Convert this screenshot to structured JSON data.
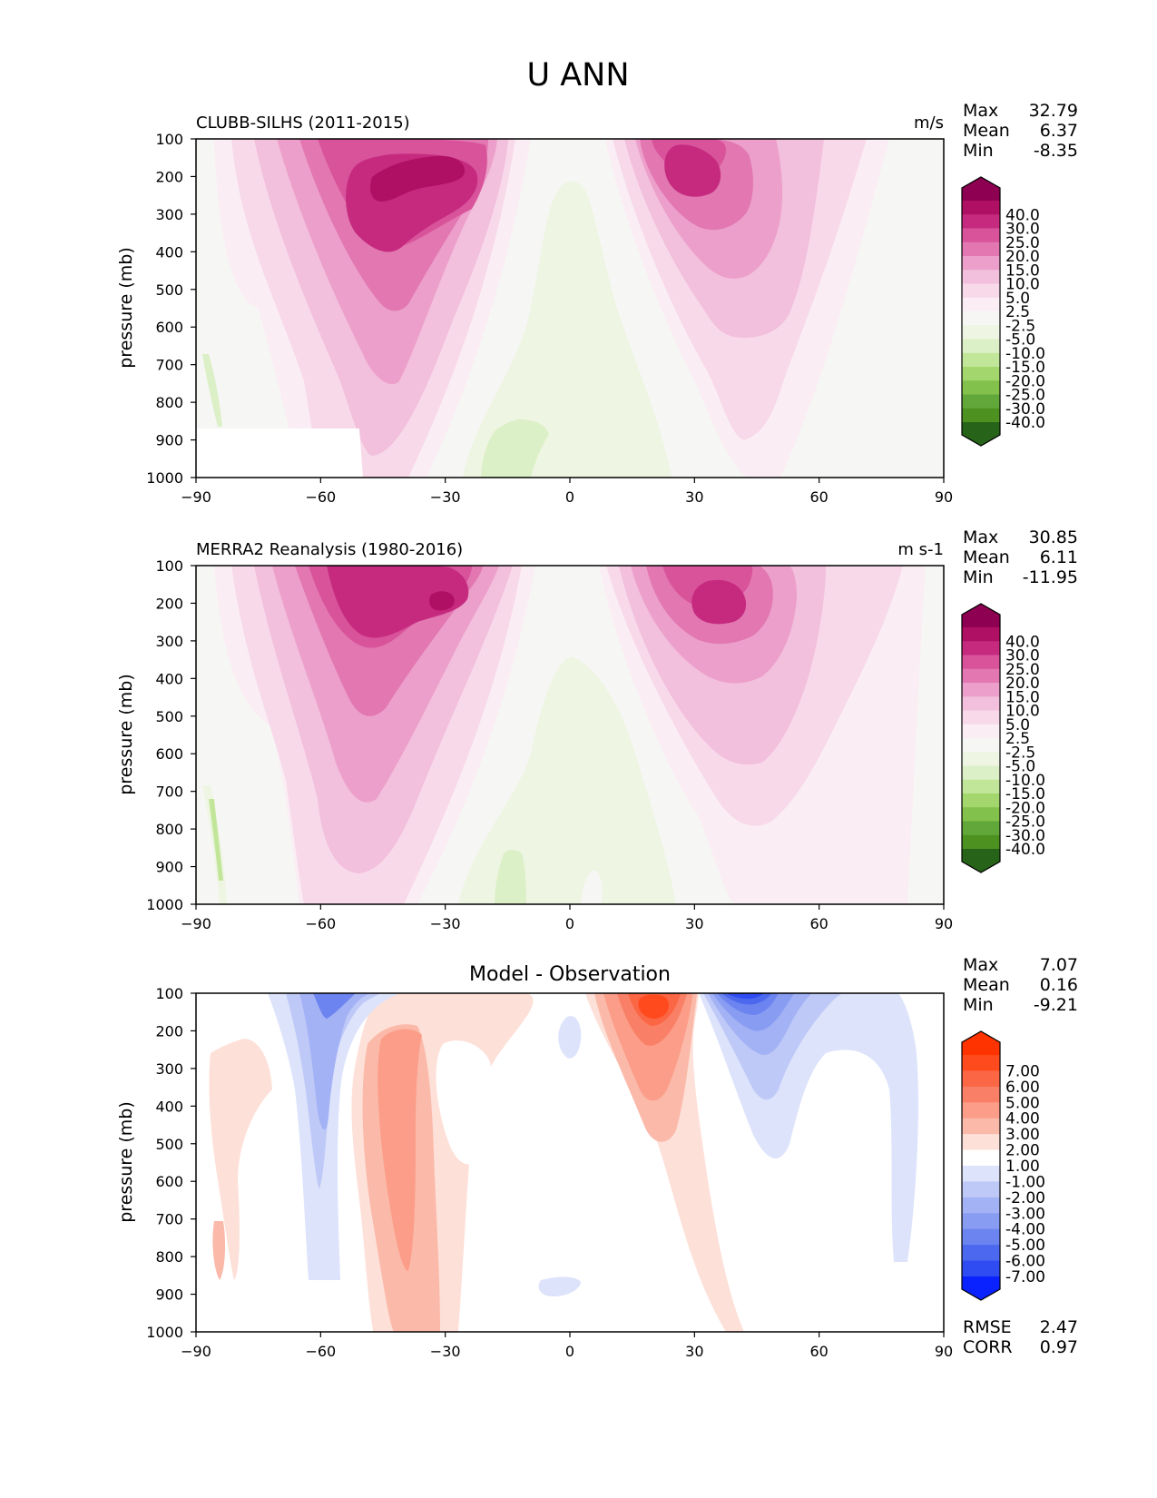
{
  "page_title": "U ANN",
  "panels": [
    {
      "title_left": "CLUBB-SILHS (2011-2015)",
      "title_center": "",
      "units": "m/s",
      "stats": [
        {
          "label": "Max",
          "value": "32.79"
        },
        {
          "label": "Mean",
          "value": "6.37"
        },
        {
          "label": "Min",
          "value": "-8.35"
        }
      ],
      "colorbar": {
        "labels": [
          "40.0",
          "30.0",
          "25.0",
          "20.0",
          "15.0",
          "10.0",
          "5.0",
          "2.5",
          "-2.5",
          "-5.0",
          "-10.0",
          "-15.0",
          "-20.0",
          "-25.0",
          "-30.0",
          "-40.0"
        ],
        "colors": [
          "#8e0152",
          "#b01064",
          "#c52a7e",
          "#d9539b",
          "#e277b1",
          "#ec9fca",
          "#f2bfdc",
          "#f8d9ea",
          "#faeef4",
          "#f6f6f4",
          "#eef5e2",
          "#dcf0c7",
          "#c2e699",
          "#a3d76d",
          "#82c14b",
          "#62a73a",
          "#4d9221",
          "#276419"
        ]
      },
      "footer_stats": []
    },
    {
      "title_left": "MERRA2 Reanalysis (1980-2016)",
      "title_center": "",
      "units": "m s-1",
      "stats": [
        {
          "label": "Max",
          "value": "30.85"
        },
        {
          "label": "Mean",
          "value": "6.11"
        },
        {
          "label": "Min",
          "value": "-11.95"
        }
      ],
      "colorbar": {
        "labels": [
          "40.0",
          "30.0",
          "25.0",
          "20.0",
          "15.0",
          "10.0",
          "5.0",
          "2.5",
          "-2.5",
          "-5.0",
          "-10.0",
          "-15.0",
          "-20.0",
          "-25.0",
          "-30.0",
          "-40.0"
        ],
        "colors": [
          "#8e0152",
          "#b01064",
          "#c52a7e",
          "#d9539b",
          "#e277b1",
          "#ec9fca",
          "#f2bfdc",
          "#f8d9ea",
          "#faeef4",
          "#f6f6f4",
          "#eef5e2",
          "#dcf0c7",
          "#c2e699",
          "#a3d76d",
          "#82c14b",
          "#62a73a",
          "#4d9221",
          "#276419"
        ]
      },
      "footer_stats": []
    },
    {
      "title_left": "",
      "title_center": "Model - Observation",
      "units": "",
      "stats": [
        {
          "label": "Max",
          "value": "7.07"
        },
        {
          "label": "Mean",
          "value": "0.16"
        },
        {
          "label": "Min",
          "value": "-9.21"
        }
      ],
      "colorbar": {
        "labels": [
          "7.00",
          "6.00",
          "5.00",
          "4.00",
          "3.00",
          "2.00",
          "1.00",
          "-1.00",
          "-2.00",
          "-3.00",
          "-4.00",
          "-5.00",
          "-6.00",
          "-7.00"
        ],
        "colors": [
          "#ff3300",
          "#ff4a1e",
          "#fb6644",
          "#f98066",
          "#fb9d88",
          "#fbb9a9",
          "#fde0d8",
          "#ffffff",
          "#dde3fb",
          "#bfc9f7",
          "#a3b2f5",
          "#889cf2",
          "#6c84ef",
          "#4c68ef",
          "#2f4cf2",
          "#0a22ff"
        ]
      },
      "footer_stats": [
        {
          "label": "RMSE",
          "value": "2.47"
        },
        {
          "label": "CORR",
          "value": "0.97"
        }
      ]
    }
  ],
  "axes": {
    "ylabel": "pressure (mb)",
    "xticks": [
      "−90",
      "−60",
      "−30",
      "0",
      "30",
      "60",
      "90"
    ],
    "yticks": [
      "100",
      "200",
      "300",
      "400",
      "500",
      "600",
      "700",
      "800",
      "900",
      "1000"
    ]
  },
  "chart_data": [
    {
      "type": "heatmap",
      "title": "CLUBB-SILHS (2011-2015)",
      "units": "m/s",
      "ylabel": "pressure (mb)",
      "xlim": [
        -90,
        90
      ],
      "ylim": [
        1000,
        100
      ],
      "x_ticks": [
        -90,
        -60,
        -30,
        0,
        30,
        60,
        90
      ],
      "y_ticks": [
        100,
        200,
        300,
        400,
        500,
        600,
        700,
        800,
        900,
        1000
      ],
      "contour_levels": [
        -40,
        -30,
        -25,
        -20,
        -15,
        -10,
        -5,
        -2.5,
        2.5,
        5,
        10,
        15,
        20,
        25,
        30,
        40
      ],
      "features": [
        {
          "lat": -35,
          "p": 200,
          "value": 32
        },
        {
          "lat": 28,
          "p": 200,
          "value": 27
        },
        {
          "lat": -5,
          "p": 500,
          "value": -3
        },
        {
          "lat": -15,
          "p": 900,
          "value": -6
        }
      ],
      "stats": {
        "Max": 32.79,
        "Mean": 6.37,
        "Min": -8.35
      }
    },
    {
      "type": "heatmap",
      "title": "MERRA2 Reanalysis (1980-2016)",
      "units": "m s-1",
      "ylabel": "pressure (mb)",
      "xlim": [
        -90,
        90
      ],
      "ylim": [
        1000,
        100
      ],
      "x_ticks": [
        -90,
        -60,
        -30,
        0,
        30,
        60,
        90
      ],
      "y_ticks": [
        100,
        200,
        300,
        400,
        500,
        600,
        700,
        800,
        900,
        1000
      ],
      "contour_levels": [
        -40,
        -30,
        -25,
        -20,
        -15,
        -10,
        -5,
        -2.5,
        2.5,
        5,
        10,
        15,
        20,
        25,
        30,
        40
      ],
      "features": [
        {
          "lat": -40,
          "p": 200,
          "value": 30
        },
        {
          "lat": 30,
          "p": 200,
          "value": 28
        },
        {
          "lat": -5,
          "p": 600,
          "value": -3
        },
        {
          "lat": -15,
          "p": 900,
          "value": -6
        }
      ],
      "stats": {
        "Max": 30.85,
        "Mean": 6.11,
        "Min": -11.95
      }
    },
    {
      "type": "heatmap",
      "title": "Model - Observation",
      "ylabel": "pressure (mb)",
      "xlim": [
        -90,
        90
      ],
      "ylim": [
        1000,
        100
      ],
      "x_ticks": [
        -90,
        -60,
        -30,
        0,
        30,
        60,
        90
      ],
      "y_ticks": [
        100,
        200,
        300,
        400,
        500,
        600,
        700,
        800,
        900,
        1000
      ],
      "contour_levels": [
        -7,
        -6,
        -5,
        -4,
        -3,
        -2,
        -1,
        1,
        2,
        3,
        4,
        5,
        6,
        7
      ],
      "features": [
        {
          "lat": 20,
          "p": 150,
          "value": 6
        },
        {
          "lat": 40,
          "p": 120,
          "value": -8
        },
        {
          "lat": -38,
          "p": 450,
          "value": 3
        },
        {
          "lat": -60,
          "p": 300,
          "value": -3
        },
        {
          "lat": 45,
          "p": 350,
          "value": -2
        }
      ],
      "stats": {
        "Max": 7.07,
        "Mean": 0.16,
        "Min": -9.21,
        "RMSE": 2.47,
        "CORR": 0.97
      }
    }
  ]
}
